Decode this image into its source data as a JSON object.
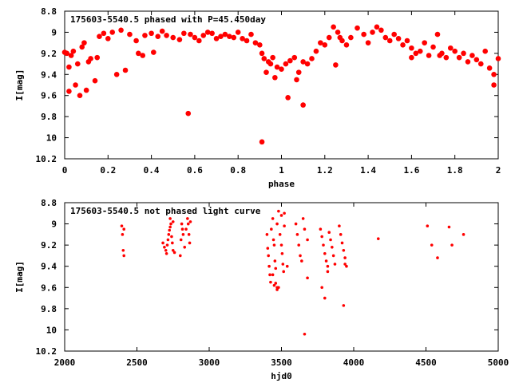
{
  "chart_data": [
    {
      "type": "scatter",
      "title": "175603-5540.5 phased with P=45.450day",
      "xlabel": "phase",
      "ylabel": "I[mag]",
      "xlim": [
        0,
        2
      ],
      "ylim": [
        8.8,
        10.2
      ],
      "y_inverted": true,
      "xticks": [
        "0",
        "0.2",
        "0.4",
        "0.6",
        "0.8",
        "1",
        "1.2",
        "1.4",
        "1.6",
        "1.8",
        "2"
      ],
      "xtick_values": [
        0,
        0.2,
        0.4,
        0.6,
        0.8,
        1,
        1.2,
        1.4,
        1.6,
        1.8,
        2
      ],
      "yticks": [
        "8.8",
        "9",
        "9.2",
        "9.4",
        "9.6",
        "9.8",
        "10",
        "10.2"
      ],
      "ytick_values": [
        8.8,
        9.0,
        9.2,
        9.4,
        9.6,
        9.8,
        10.0,
        10.2
      ],
      "grid": false,
      "legend": "none",
      "color": "#ff0000",
      "marker": "circle-large",
      "series": [
        {
          "x": [
            0.0,
            0.01,
            0.02,
            0.03,
            0.04,
            0.06,
            0.08,
            0.09,
            0.11,
            0.12,
            0.15,
            0.16,
            0.18,
            0.2,
            0.22,
            0.26,
            0.3,
            0.33,
            0.36,
            0.37,
            0.4,
            0.41,
            0.43,
            0.45,
            0.47,
            0.5,
            0.53,
            0.55,
            0.58,
            0.6,
            0.62,
            0.64,
            0.66,
            0.68,
            0.7,
            0.72,
            0.74,
            0.76,
            0.78,
            0.8,
            0.82,
            0.84,
            0.86,
            0.88,
            0.9,
            0.91,
            0.92,
            0.94,
            0.95,
            0.96,
            0.98,
            1.0,
            1.02,
            1.04,
            1.06,
            1.08,
            1.1,
            1.12,
            1.14,
            1.16,
            1.18,
            1.2,
            1.22,
            1.24,
            1.26,
            1.28,
            1.3,
            1.32,
            1.35,
            1.38,
            1.4,
            1.42,
            1.44,
            1.46,
            1.48,
            1.5,
            1.52,
            1.54,
            1.56,
            1.58,
            1.6,
            1.62,
            1.64,
            1.66,
            1.68,
            1.7,
            1.72,
            1.74,
            1.76,
            1.78,
            1.8,
            1.82,
            1.84,
            1.86,
            1.88,
            1.9,
            1.92,
            1.94,
            1.96,
            1.98,
            2.0,
            0.05,
            0.1,
            0.14,
            0.24,
            0.28,
            0.34,
            0.57,
            0.91,
            1.07,
            1.03,
            0.97,
            0.93,
            1.1,
            1.25,
            1.27,
            1.6,
            1.73,
            1.98,
            0.02,
            0.07
          ],
          "y": [
            9.19,
            9.2,
            9.33,
            9.22,
            9.18,
            9.3,
            9.14,
            9.1,
            9.28,
            9.25,
            9.24,
            9.04,
            9.01,
            9.06,
            9.0,
            8.98,
            9.02,
            9.08,
            9.22,
            9.03,
            9.01,
            9.19,
            9.04,
            8.99,
            9.03,
            9.05,
            9.07,
            9.01,
            9.02,
            9.05,
            9.08,
            9.03,
            9.0,
            9.01,
            9.06,
            9.04,
            9.02,
            9.04,
            9.05,
            9.0,
            9.06,
            9.08,
            9.02,
            9.1,
            9.12,
            9.2,
            9.25,
            9.28,
            9.3,
            9.24,
            9.33,
            9.35,
            9.3,
            9.27,
            9.24,
            9.38,
            9.28,
            9.3,
            9.25,
            9.18,
            9.1,
            9.12,
            9.05,
            8.95,
            9.0,
            9.08,
            9.12,
            9.05,
            8.96,
            9.02,
            9.1,
            9.0,
            8.95,
            8.98,
            9.05,
            9.08,
            9.02,
            9.06,
            9.12,
            9.08,
            9.15,
            9.2,
            9.18,
            9.1,
            9.22,
            9.14,
            9.02,
            9.2,
            9.24,
            9.15,
            9.18,
            9.24,
            9.2,
            9.28,
            9.22,
            9.26,
            9.3,
            9.18,
            9.34,
            9.4,
            9.25,
            9.5,
            9.55,
            9.46,
            9.4,
            9.36,
            9.2,
            9.77,
            10.04,
            9.45,
            9.62,
            9.43,
            9.38,
            9.69,
            9.31,
            9.05,
            9.24,
            9.22,
            9.5,
            9.56,
            9.6
          ]
        }
      ]
    },
    {
      "type": "scatter",
      "title": "175603-5540.5 not phased light curve",
      "xlabel": "hjd0",
      "ylabel": "I[mag]",
      "xlim": [
        2000,
        5000
      ],
      "ylim": [
        8.8,
        10.2
      ],
      "y_inverted": true,
      "xticks": [
        "2000",
        "2500",
        "3000",
        "3500",
        "4000",
        "4500",
        "5000"
      ],
      "xtick_values": [
        2000,
        2500,
        3000,
        3500,
        4000,
        4500,
        5000
      ],
      "yticks": [
        "8.8",
        "9",
        "9.2",
        "9.4",
        "9.6",
        "9.8",
        "10",
        "10.2"
      ],
      "ytick_values": [
        8.8,
        9.0,
        9.2,
        9.4,
        9.6,
        9.8,
        10.0,
        10.2
      ],
      "grid": false,
      "legend": "none",
      "color": "#ff0000",
      "marker": "circle-small",
      "series": [
        {
          "x": [
            2395,
            2400,
            2405,
            2410,
            2410,
            2680,
            2690,
            2700,
            2705,
            2710,
            2715,
            2720,
            2725,
            2730,
            2735,
            2740,
            2745,
            2750,
            2760,
            2800,
            2805,
            2810,
            2815,
            2820,
            2830,
            2840,
            2850,
            2855,
            2860,
            2865,
            2870,
            3400,
            3405,
            3410,
            3415,
            3420,
            3425,
            3430,
            3440,
            3445,
            3450,
            3455,
            3460,
            3470,
            3480,
            3490,
            3500,
            3505,
            3510,
            3515,
            3520,
            3600,
            3610,
            3620,
            3630,
            3640,
            3650,
            3660,
            3680,
            3770,
            3780,
            3790,
            3800,
            3810,
            3820,
            3830,
            3840,
            3850,
            3860,
            3870,
            3900,
            3910,
            3920,
            3930,
            3940,
            3950,
            4170,
            4510,
            4540,
            4580,
            4660,
            4680,
            4760,
            3440,
            3460,
            3470,
            3470,
            3680,
            3660,
            3780,
            3800,
            3930,
            3940,
            3820,
            2750,
            2730,
            3500,
            3520,
            3540,
            3450,
            3480
          ],
          "y": [
            9.02,
            9.1,
            9.25,
            9.3,
            9.05,
            9.18,
            9.22,
            9.25,
            9.28,
            9.2,
            9.15,
            9.1,
            9.06,
            8.95,
            9.0,
            9.12,
            9.18,
            9.25,
            9.27,
            9.3,
            9.15,
            9.0,
            9.05,
            9.1,
            9.22,
            9.05,
            8.95,
            9.0,
            9.1,
            9.18,
            8.98,
            9.1,
            9.23,
            9.3,
            9.4,
            9.48,
            9.55,
            9.05,
            8.95,
            9.15,
            9.2,
            9.35,
            9.42,
            9.0,
            8.88,
            9.1,
            9.2,
            9.28,
            9.38,
            9.45,
            8.9,
            9.0,
            9.1,
            9.2,
            9.3,
            9.35,
            8.95,
            9.05,
            9.15,
            9.05,
            9.12,
            9.2,
            9.28,
            9.35,
            9.4,
            9.08,
            9.15,
            9.22,
            9.3,
            9.38,
            9.02,
            9.1,
            9.18,
            9.25,
            9.32,
            9.4,
            9.14,
            9.02,
            9.2,
            9.32,
            9.03,
            9.2,
            9.1,
            9.48,
            9.56,
            9.6,
            9.62,
            9.51,
            10.04,
            9.6,
            9.7,
            9.77,
            9.38,
            9.45,
            8.98,
            9.03,
            8.92,
            9.02,
            9.4,
            9.58,
            9.6
          ]
        }
      ]
    }
  ]
}
